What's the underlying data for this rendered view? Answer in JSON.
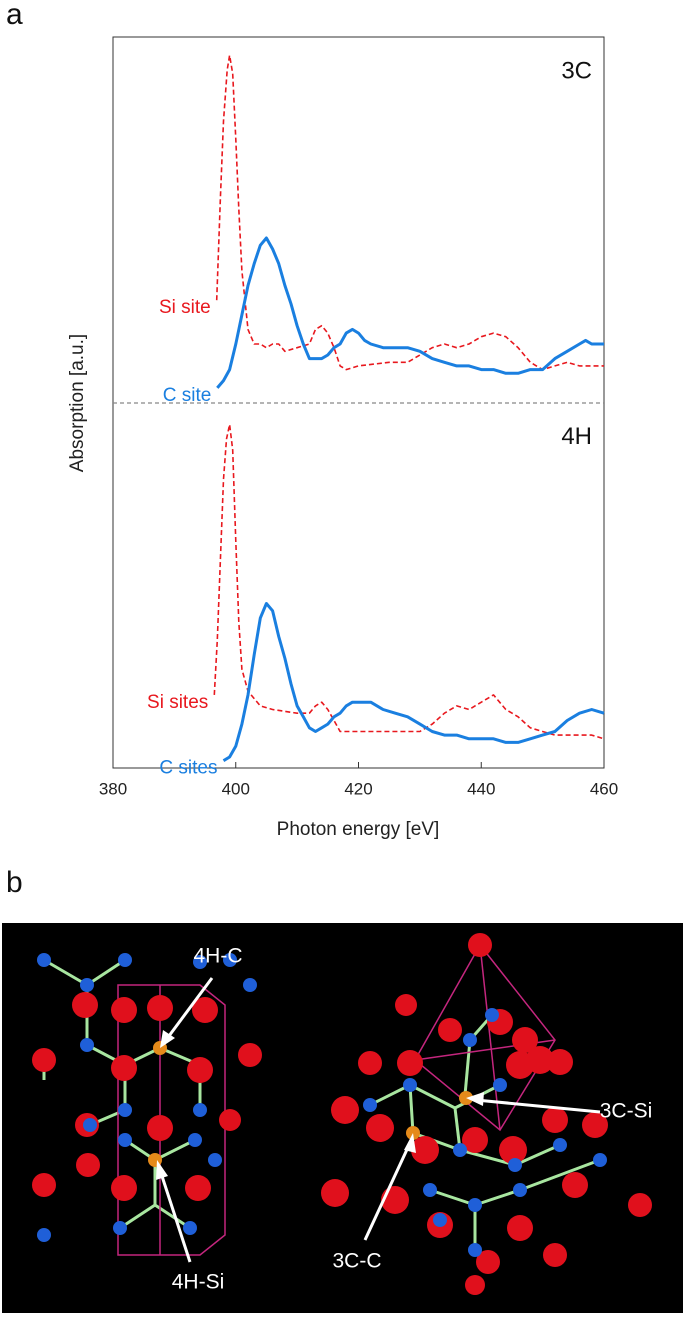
{
  "figure": {
    "panel_a_label": "a",
    "panel_b_label": "b"
  },
  "chart_data": {
    "type": "line",
    "xlabel": "Photon energy [eV]",
    "ylabel": "Absorption [a.u.]",
    "xlim": [
      380,
      460
    ],
    "xticks": [
      380,
      400,
      420,
      440,
      460
    ],
    "panels": [
      {
        "title": "3C",
        "ylim": [
          0,
          1
        ],
        "series": [
          {
            "name": "Si site",
            "color": "#e8181e",
            "linestyle": "dashed",
            "x": [
              396.9,
              397.5,
              398,
              398.6,
              399,
              399.5,
              400,
              400.5,
              401,
              402,
              403,
              404,
              405,
              406,
              407,
              408,
              410,
              412,
              413,
              414,
              415,
              416,
              417,
              418,
              420,
              425,
              428,
              430,
              432,
              434,
              436,
              438,
              440,
              442,
              444,
              446,
              448,
              450,
              452,
              454,
              456,
              460
            ],
            "values": [
              0.28,
              0.56,
              0.77,
              0.91,
              0.95,
              0.9,
              0.72,
              0.53,
              0.36,
              0.2,
              0.16,
              0.16,
              0.15,
              0.16,
              0.16,
              0.14,
              0.15,
              0.16,
              0.2,
              0.21,
              0.19,
              0.15,
              0.1,
              0.09,
              0.1,
              0.11,
              0.11,
              0.13,
              0.15,
              0.16,
              0.15,
              0.16,
              0.18,
              0.19,
              0.18,
              0.15,
              0.11,
              0.09,
              0.1,
              0.11,
              0.1,
              0.1
            ]
          },
          {
            "name": "C site",
            "color": "#1a7fe0",
            "linestyle": "solid",
            "x": [
              397,
              398,
              399,
              400,
              401,
              402,
              403,
              404,
              405,
              406,
              407,
              408,
              409,
              410,
              411,
              412,
              413,
              414,
              415,
              416,
              417,
              418,
              419,
              420,
              421,
              422,
              424,
              426,
              428,
              430,
              432,
              434,
              436,
              438,
              440,
              442,
              444,
              446,
              448,
              450,
              452,
              454,
              456,
              457,
              458,
              460
            ],
            "values": [
              0.04,
              0.06,
              0.09,
              0.16,
              0.24,
              0.32,
              0.38,
              0.43,
              0.45,
              0.42,
              0.38,
              0.32,
              0.27,
              0.21,
              0.16,
              0.12,
              0.12,
              0.12,
              0.13,
              0.15,
              0.16,
              0.19,
              0.2,
              0.19,
              0.17,
              0.16,
              0.15,
              0.15,
              0.15,
              0.14,
              0.12,
              0.11,
              0.1,
              0.1,
              0.09,
              0.09,
              0.08,
              0.08,
              0.09,
              0.09,
              0.12,
              0.14,
              0.16,
              0.17,
              0.16,
              0.16
            ]
          }
        ]
      },
      {
        "title": "4H",
        "ylim": [
          0,
          1
        ],
        "series": [
          {
            "name": "Si sites",
            "color": "#e8181e",
            "linestyle": "dashed",
            "x": [
              396.5,
              397,
              397.5,
              398,
              398.5,
              399,
              399.5,
              400,
              400.5,
              401,
              402,
              403,
              404,
              406,
              410,
              412,
              413,
              414,
              415,
              416,
              417,
              418,
              420,
              425,
              430,
              432,
              434,
              436,
              438,
              440,
              442,
              444,
              446,
              448,
              450,
              452,
              455,
              458,
              460
            ],
            "values": [
              0.2,
              0.35,
              0.57,
              0.79,
              0.9,
              0.94,
              0.87,
              0.62,
              0.4,
              0.27,
              0.21,
              0.19,
              0.17,
              0.16,
              0.15,
              0.15,
              0.17,
              0.18,
              0.16,
              0.13,
              0.1,
              0.1,
              0.1,
              0.1,
              0.1,
              0.12,
              0.15,
              0.17,
              0.16,
              0.18,
              0.2,
              0.16,
              0.14,
              0.11,
              0.1,
              0.09,
              0.09,
              0.09,
              0.08
            ]
          },
          {
            "name": "C sites",
            "color": "#1a7fe0",
            "linestyle": "solid",
            "x": [
              398,
              399,
              400,
              401,
              402,
              403,
              404,
              405,
              406,
              407,
              408,
              409,
              410,
              411,
              412,
              413,
              414,
              415,
              416,
              417,
              418,
              419,
              420,
              421,
              422,
              424,
              426,
              428,
              430,
              432,
              434,
              436,
              438,
              440,
              442,
              444,
              446,
              448,
              450,
              452,
              454,
              456,
              458,
              460
            ],
            "values": [
              0.02,
              0.03,
              0.06,
              0.12,
              0.2,
              0.31,
              0.41,
              0.45,
              0.43,
              0.36,
              0.3,
              0.23,
              0.17,
              0.14,
              0.11,
              0.1,
              0.11,
              0.12,
              0.14,
              0.15,
              0.17,
              0.18,
              0.18,
              0.18,
              0.18,
              0.16,
              0.15,
              0.14,
              0.12,
              0.1,
              0.09,
              0.09,
              0.08,
              0.08,
              0.08,
              0.07,
              0.07,
              0.08,
              0.09,
              0.1,
              0.13,
              0.15,
              0.16,
              0.15
            ]
          }
        ]
      }
    ]
  },
  "structure": {
    "labels": [
      "4H-C",
      "4H-Si",
      "3C-Si",
      "3C-C"
    ]
  }
}
